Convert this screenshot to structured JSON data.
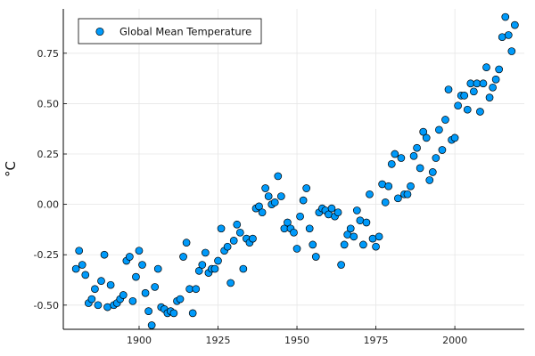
{
  "chart_data": {
    "type": "scatter",
    "title": "",
    "xlabel": "",
    "ylabel": "°C",
    "xlim": [
      1876,
      2022
    ],
    "ylim": [
      -0.62,
      0.97
    ],
    "x_ticks": [
      1900,
      1925,
      1950,
      1975,
      2000
    ],
    "y_ticks": [
      -0.5,
      -0.25,
      0.0,
      0.25,
      0.5,
      0.75
    ],
    "y_tick_labels": [
      "-0.50",
      "-0.25",
      "0.00",
      "0.25",
      "0.50",
      "0.75"
    ],
    "grid": true,
    "legend_position": "top-left",
    "series": [
      {
        "name": "Global Mean Temperature",
        "color": "#009AFA",
        "x": [
          1880,
          1881,
          1882,
          1883,
          1884,
          1885,
          1886,
          1887,
          1888,
          1889,
          1890,
          1891,
          1892,
          1893,
          1894,
          1895,
          1896,
          1897,
          1898,
          1899,
          1900,
          1901,
          1902,
          1903,
          1904,
          1905,
          1906,
          1907,
          1908,
          1909,
          1910,
          1911,
          1912,
          1913,
          1914,
          1915,
          1916,
          1917,
          1918,
          1919,
          1920,
          1921,
          1922,
          1923,
          1924,
          1925,
          1926,
          1927,
          1928,
          1929,
          1930,
          1931,
          1932,
          1933,
          1934,
          1935,
          1936,
          1937,
          1938,
          1939,
          1940,
          1941,
          1942,
          1943,
          1944,
          1945,
          1946,
          1947,
          1948,
          1949,
          1950,
          1951,
          1952,
          1953,
          1954,
          1955,
          1956,
          1957,
          1958,
          1959,
          1960,
          1961,
          1962,
          1963,
          1964,
          1965,
          1966,
          1967,
          1968,
          1969,
          1970,
          1971,
          1972,
          1973,
          1974,
          1975,
          1976,
          1977,
          1978,
          1979,
          1980,
          1981,
          1982,
          1983,
          1984,
          1985,
          1986,
          1987,
          1988,
          1989,
          1990,
          1991,
          1992,
          1993,
          1994,
          1995,
          1996,
          1997,
          1998,
          1999,
          2000,
          2001,
          2002,
          2003,
          2004,
          2005,
          2006,
          2007,
          2008,
          2009,
          2010,
          2011,
          2012,
          2013,
          2014,
          2015,
          2016,
          2017,
          2018,
          2019
        ],
        "y": [
          -0.32,
          -0.23,
          -0.3,
          -0.35,
          -0.49,
          -0.47,
          -0.42,
          -0.5,
          -0.38,
          -0.25,
          -0.51,
          -0.4,
          -0.5,
          -0.49,
          -0.47,
          -0.45,
          -0.28,
          -0.26,
          -0.48,
          -0.36,
          -0.23,
          -0.3,
          -0.44,
          -0.53,
          -0.6,
          -0.41,
          -0.32,
          -0.51,
          -0.52,
          -0.54,
          -0.53,
          -0.54,
          -0.48,
          -0.47,
          -0.26,
          -0.19,
          -0.42,
          -0.54,
          -0.42,
          -0.33,
          -0.3,
          -0.24,
          -0.34,
          -0.32,
          -0.32,
          -0.28,
          -0.12,
          -0.23,
          -0.21,
          -0.39,
          -0.18,
          -0.1,
          -0.14,
          -0.32,
          -0.17,
          -0.19,
          -0.17,
          -0.02,
          -0.01,
          -0.04,
          0.08,
          0.04,
          0.0,
          0.01,
          0.14,
          0.04,
          -0.12,
          -0.09,
          -0.12,
          -0.14,
          -0.22,
          -0.06,
          0.02,
          0.08,
          -0.12,
          -0.2,
          -0.26,
          -0.04,
          -0.02,
          -0.03,
          -0.05,
          -0.02,
          -0.06,
          -0.04,
          -0.3,
          -0.2,
          -0.15,
          -0.12,
          -0.16,
          -0.03,
          -0.08,
          -0.2,
          -0.09,
          0.05,
          -0.17,
          -0.21,
          -0.16,
          0.1,
          0.01,
          0.09,
          0.2,
          0.25,
          0.03,
          0.23,
          0.05,
          0.05,
          0.09,
          0.24,
          0.28,
          0.18,
          0.36,
          0.33,
          0.12,
          0.16,
          0.23,
          0.37,
          0.27,
          0.42,
          0.57,
          0.32,
          0.33,
          0.49,
          0.54,
          0.54,
          0.47,
          0.6,
          0.56,
          0.6,
          0.46,
          0.6,
          0.68,
          0.53,
          0.58,
          0.62,
          0.67,
          0.83,
          0.93,
          0.84,
          0.76,
          0.89
        ]
      }
    ]
  }
}
